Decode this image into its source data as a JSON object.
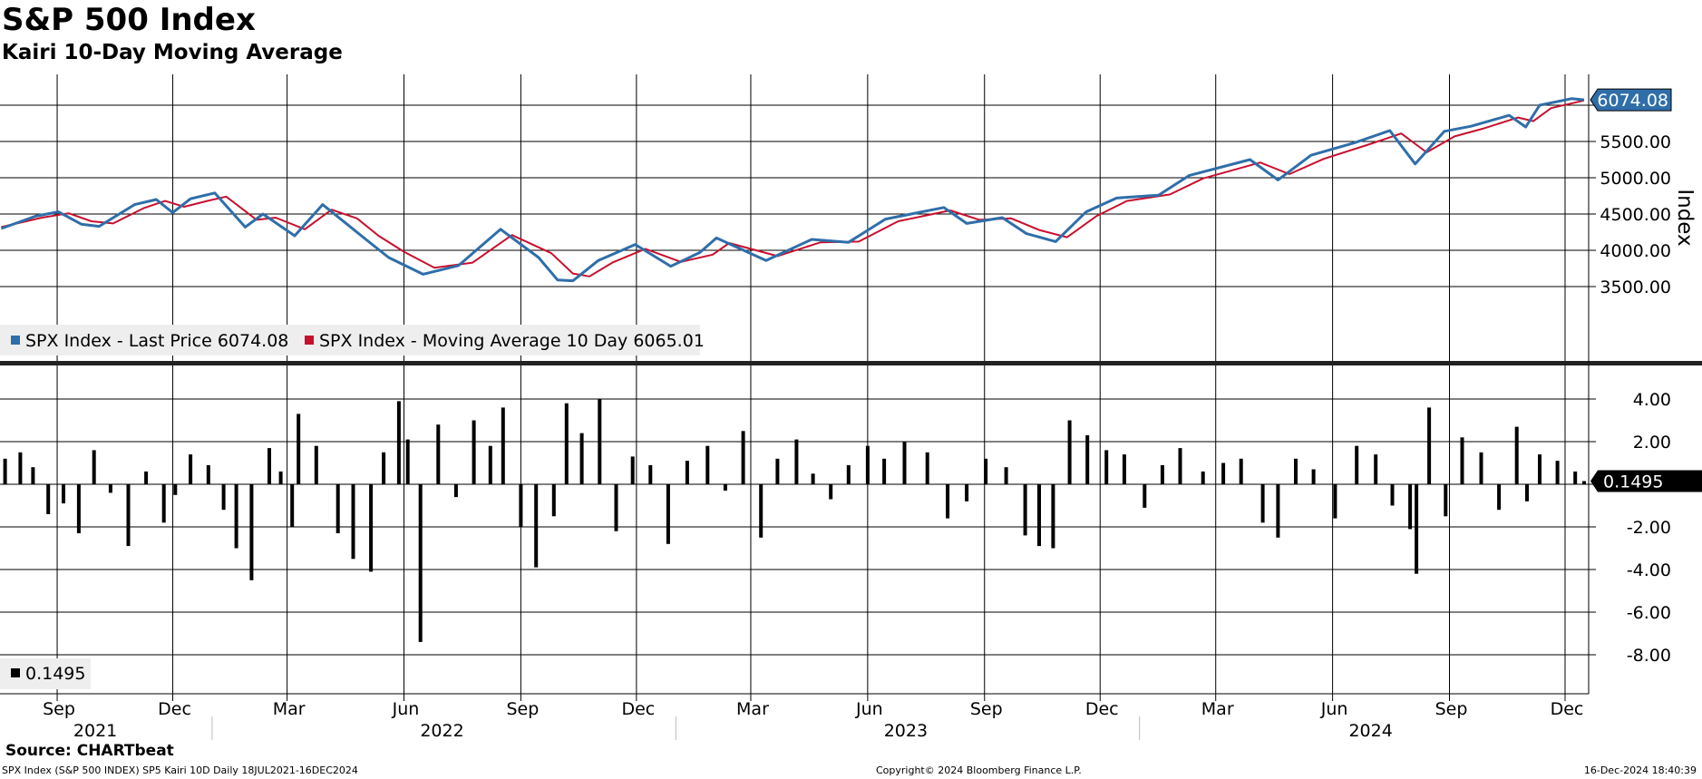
{
  "header": {
    "title": "S&P 500 Index",
    "subtitle": "Kairi 10-Day Moving Average"
  },
  "footer": {
    "source": "Source: CHARTbeat",
    "left": "SPX Index (S&P 500 INDEX) SP5 Kairi 10D  Daily 18JUL2021-16DEC2024",
    "mid": "Copyright© 2024 Bloomberg Finance L.P.",
    "right": "16-Dec-2024 18:40:39"
  },
  "colors": {
    "price": "#2f6ea9",
    "moving_average": "#c8102e",
    "kairi": "#000000",
    "last_price_tag": "#2f6ea9"
  },
  "chart_data": [
    {
      "type": "line",
      "ylabel": "Index",
      "ylim": [
        3000,
        6400
      ],
      "yticks": [
        3500,
        4000,
        4500,
        5000,
        5500,
        6000
      ],
      "ytick_labels": [
        "3500.00",
        "4000.00",
        "4500.00",
        "5000.00",
        "5500.00",
        ""
      ],
      "last_value_tag": "6074.08",
      "x_months": [
        "Sep",
        "Dec",
        "Mar",
        "Jun",
        "Sep",
        "Dec",
        "Mar",
        "Jun",
        "Sep",
        "Dec",
        "Mar",
        "Jun",
        "Sep",
        "Dec"
      ],
      "x_years": [
        "2021",
        "2022",
        "2023",
        "2024"
      ],
      "x_range": [
        "2021-07-18",
        "2024-12-16"
      ],
      "legend": [
        {
          "label": "SPX Index - Last Price 6074.08",
          "color": "#2f6ea9"
        },
        {
          "label": "SPX Index - Moving Average 10 Day 6065.01",
          "color": "#c8102e"
        }
      ],
      "series": [
        {
          "name": "SPX Index - Last Price",
          "x": [
            "2021-07-19",
            "2021-08-15",
            "2021-09-02",
            "2021-09-20",
            "2021-10-04",
            "2021-11-01",
            "2021-11-18",
            "2021-12-01",
            "2021-12-15",
            "2022-01-03",
            "2022-01-27",
            "2022-02-10",
            "2022-03-07",
            "2022-03-29",
            "2022-04-15",
            "2022-05-02",
            "2022-05-20",
            "2022-06-16",
            "2022-07-14",
            "2022-08-16",
            "2022-09-15",
            "2022-09-30",
            "2022-10-12",
            "2022-11-01",
            "2022-11-30",
            "2022-12-28",
            "2023-01-20",
            "2023-02-02",
            "2023-03-13",
            "2023-04-18",
            "2023-05-17",
            "2023-06-15",
            "2023-07-31",
            "2023-08-18",
            "2023-09-15",
            "2023-10-04",
            "2023-10-27",
            "2023-11-20",
            "2023-12-14",
            "2024-01-16",
            "2024-02-09",
            "2024-03-28",
            "2024-04-19",
            "2024-05-15",
            "2024-06-18",
            "2024-07-16",
            "2024-08-05",
            "2024-08-28",
            "2024-09-18",
            "2024-10-18",
            "2024-10-31",
            "2024-11-11",
            "2024-12-06",
            "2024-12-16"
          ],
          "values": [
            4300,
            4470,
            4530,
            4360,
            4330,
            4630,
            4700,
            4520,
            4710,
            4790,
            4320,
            4500,
            4200,
            4630,
            4390,
            4150,
            3900,
            3670,
            3790,
            4290,
            3900,
            3590,
            3580,
            3860,
            4080,
            3780,
            3970,
            4170,
            3860,
            4150,
            4110,
            4430,
            4590,
            4370,
            4450,
            4230,
            4120,
            4530,
            4720,
            4760,
            5030,
            5250,
            4970,
            5310,
            5480,
            5650,
            5190,
            5640,
            5710,
            5860,
            5700,
            6000,
            6090,
            6074.08
          ]
        },
        {
          "name": "SPX Index - Moving Average 10 Day",
          "x": [
            "2021-07-19",
            "2021-08-20",
            "2021-09-10",
            "2021-09-28",
            "2021-10-15",
            "2021-11-08",
            "2021-11-25",
            "2021-12-10",
            "2021-12-28",
            "2022-01-12",
            "2022-02-05",
            "2022-02-20",
            "2022-03-15",
            "2022-04-05",
            "2022-04-25",
            "2022-05-12",
            "2022-06-01",
            "2022-06-25",
            "2022-07-25",
            "2022-08-25",
            "2022-09-25",
            "2022-10-12",
            "2022-10-25",
            "2022-11-12",
            "2022-12-08",
            "2023-01-05",
            "2023-01-30",
            "2023-02-12",
            "2023-03-22",
            "2023-04-25",
            "2023-05-25",
            "2023-06-25",
            "2023-08-05",
            "2023-08-28",
            "2023-09-22",
            "2023-10-14",
            "2023-11-05",
            "2023-11-28",
            "2023-12-22",
            "2024-01-25",
            "2024-02-20",
            "2024-04-05",
            "2024-04-28",
            "2024-05-25",
            "2024-06-28",
            "2024-07-25",
            "2024-08-14",
            "2024-09-05",
            "2024-09-28",
            "2024-10-25",
            "2024-11-06",
            "2024-11-20",
            "2024-12-16"
          ],
          "values": [
            4320,
            4450,
            4510,
            4400,
            4370,
            4580,
            4680,
            4600,
            4680,
            4740,
            4420,
            4450,
            4290,
            4560,
            4440,
            4200,
            3980,
            3760,
            3830,
            4210,
            3960,
            3680,
            3640,
            3830,
            4020,
            3840,
            3940,
            4100,
            3920,
            4110,
            4120,
            4400,
            4550,
            4420,
            4440,
            4280,
            4180,
            4470,
            4680,
            4770,
            4990,
            5210,
            5050,
            5260,
            5450,
            5610,
            5350,
            5570,
            5680,
            5830,
            5780,
            5960,
            6065.01
          ]
        }
      ]
    },
    {
      "type": "bar",
      "ylim": [
        -9,
        5
      ],
      "yticks": [
        -8,
        -6,
        -4,
        -2,
        0,
        2,
        4
      ],
      "ytick_labels": [
        "-8.00",
        "-6.00",
        "-4.00",
        "-2.00",
        "",
        "2.00",
        "4.00"
      ],
      "last_value_tag": "0.1495",
      "legend": [
        {
          "label": "0.1495",
          "color": "#000000"
        }
      ],
      "series": [
        {
          "name": "Kairi 10-Day",
          "x": [
            "2021-07-22",
            "2021-08-03",
            "2021-08-13",
            "2021-08-25",
            "2021-09-06",
            "2021-09-18",
            "2021-09-30",
            "2021-10-13",
            "2021-10-27",
            "2021-11-10",
            "2021-11-24",
            "2021-12-03",
            "2021-12-15",
            "2021-12-29",
            "2022-01-10",
            "2022-01-20",
            "2022-02-01",
            "2022-02-15",
            "2022-02-24",
            "2022-03-05",
            "2022-03-10",
            "2022-03-24",
            "2022-04-10",
            "2022-04-22",
            "2022-05-06",
            "2022-05-16",
            "2022-05-28",
            "2022-06-04",
            "2022-06-14",
            "2022-06-28",
            "2022-07-12",
            "2022-07-26",
            "2022-08-08",
            "2022-08-18",
            "2022-09-01",
            "2022-09-13",
            "2022-09-27",
            "2022-10-07",
            "2022-10-19",
            "2022-11-02",
            "2022-11-15",
            "2022-11-28",
            "2022-12-12",
            "2022-12-26",
            "2023-01-10",
            "2023-01-26",
            "2023-02-09",
            "2023-02-23",
            "2023-03-09",
            "2023-03-22",
            "2023-04-06",
            "2023-04-19",
            "2023-05-03",
            "2023-05-17",
            "2023-06-01",
            "2023-06-14",
            "2023-06-30",
            "2023-07-18",
            "2023-08-03",
            "2023-08-18",
            "2023-09-02",
            "2023-09-18",
            "2023-10-03",
            "2023-10-14",
            "2023-10-25",
            "2023-11-07",
            "2023-11-21",
            "2023-12-06",
            "2023-12-20",
            "2024-01-05",
            "2024-01-19",
            "2024-02-02",
            "2024-02-20",
            "2024-03-07",
            "2024-03-21",
            "2024-04-07",
            "2024-04-19",
            "2024-05-03",
            "2024-05-17",
            "2024-06-03",
            "2024-06-20",
            "2024-07-05",
            "2024-07-18",
            "2024-08-01",
            "2024-08-06",
            "2024-08-16",
            "2024-08-29",
            "2024-09-11",
            "2024-09-26",
            "2024-10-10",
            "2024-10-24",
            "2024-11-01",
            "2024-11-11",
            "2024-11-25",
            "2024-12-09",
            "2024-12-16"
          ],
          "values": [
            1.2,
            1.5,
            0.8,
            -1.4,
            -0.9,
            -2.3,
            1.6,
            -0.4,
            -2.9,
            0.6,
            -1.8,
            -0.5,
            1.4,
            0.9,
            -1.2,
            -3.0,
            -4.5,
            1.7,
            0.6,
            -2.0,
            3.3,
            1.8,
            -2.3,
            -3.5,
            -4.1,
            1.5,
            3.9,
            2.1,
            -7.4,
            2.8,
            -0.6,
            3.0,
            1.8,
            3.6,
            -2.0,
            -3.9,
            -1.5,
            3.8,
            2.4,
            4.0,
            -2.2,
            1.3,
            0.9,
            -2.8,
            1.1,
            1.8,
            -0.3,
            2.5,
            -2.5,
            1.2,
            2.1,
            0.5,
            -0.7,
            0.9,
            1.8,
            1.2,
            2.0,
            1.5,
            -1.6,
            -0.8,
            1.2,
            0.8,
            -2.4,
            -2.9,
            -3.0,
            3.0,
            2.3,
            1.6,
            1.4,
            -1.1,
            0.9,
            1.7,
            0.6,
            1.0,
            1.2,
            -1.8,
            -2.5,
            1.2,
            0.7,
            -1.6,
            1.8,
            1.4,
            -1.0,
            -2.1,
            -4.2,
            3.6,
            -1.5,
            2.2,
            1.5,
            -1.2,
            2.7,
            -0.8,
            1.4,
            1.1,
            0.6,
            0.1495
          ]
        }
      ]
    }
  ]
}
